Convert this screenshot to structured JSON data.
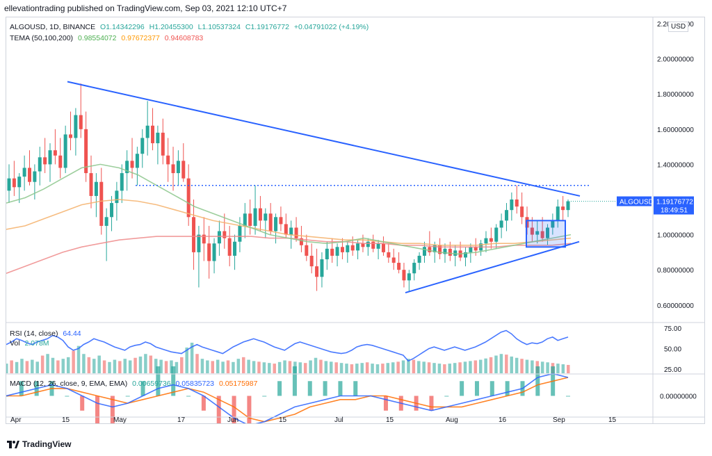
{
  "header": {
    "publisher_line": "ellevationtrading published on TradingView.com, Sep 03, 2021 12:10 UTC+7"
  },
  "legend": {
    "symbol_line": "ALGOUSD, 1D, BINANCE",
    "open": "O1.14342296",
    "high": "H1.20455300",
    "low": "L1.10537324",
    "close": "C1.19176772",
    "change": "+0.04791022 (+4.19%)",
    "tema_label": "TEMA (50,100,200)",
    "tema_v1": "0.98554072",
    "tema_v2": "0.97672377",
    "tema_v3": "0.94608783",
    "rsi_label": "RSI (14, close)",
    "rsi_value": "64.44",
    "vol_label": "Vol",
    "vol_value": "2.078M",
    "macd_label": "MACD (12, 26, close, 9, EMA, EMA)",
    "macd_v1": "0.00659736",
    "macd_v2": "0.05835723",
    "macd_v3": "0.05175987"
  },
  "price_axis": {
    "currency": "USD",
    "ticks": [
      "2.20000000",
      "2.00000000",
      "1.80000000",
      "1.60000000",
      "1.40000000",
      "1.20000000",
      "1.00000000",
      "0.80000000",
      "0.60000000"
    ],
    "symbol_tag": "ALGOUSD",
    "last_price": "1.19176772",
    "countdown": "18:49:51"
  },
  "rsi_axis": {
    "ticks": [
      "75.00",
      "50.00",
      "25.00"
    ]
  },
  "macd_axis": {
    "ticks": [
      "0.00000000"
    ]
  },
  "time_axis": {
    "labels": [
      "Apr",
      "15",
      "May",
      "17",
      "Jun",
      "15",
      "Jul",
      "15",
      "Aug",
      "16",
      "Sep",
      "15"
    ]
  },
  "footer": {
    "brand": "TradingView"
  },
  "colors": {
    "up": "#26a69a",
    "down": "#ef5350",
    "trend": "#2962ff",
    "tema50": "#8bc58b",
    "tema100": "#f5b06a",
    "tema200": "#ef8a8a",
    "rsi": "#2962ff",
    "macd": "#2962ff",
    "signal": "#ff6d00"
  },
  "chart_data": {
    "type": "candlestick",
    "symbol": "ALGOUSD",
    "interval": "1D",
    "exchange": "BINANCE",
    "x_start": "2021-04-01",
    "x_end": "2021-09-03",
    "ylim": [
      0.52,
      2.22
    ],
    "ohlc": [
      [
        1.25,
        1.4,
        1.18,
        1.32
      ],
      [
        1.32,
        1.42,
        1.22,
        1.27
      ],
      [
        1.27,
        1.35,
        1.18,
        1.33
      ],
      [
        1.33,
        1.45,
        1.25,
        1.38
      ],
      [
        1.38,
        1.48,
        1.28,
        1.3
      ],
      [
        1.3,
        1.4,
        1.2,
        1.36
      ],
      [
        1.36,
        1.5,
        1.28,
        1.44
      ],
      [
        1.44,
        1.55,
        1.35,
        1.4
      ],
      [
        1.4,
        1.52,
        1.3,
        1.48
      ],
      [
        1.48,
        1.6,
        1.4,
        1.45
      ],
      [
        1.45,
        1.55,
        1.32,
        1.38
      ],
      [
        1.38,
        1.62,
        1.35,
        1.57
      ],
      [
        1.57,
        1.7,
        1.48,
        1.55
      ],
      [
        1.55,
        1.72,
        1.45,
        1.68
      ],
      [
        1.68,
        1.86,
        1.55,
        1.6
      ],
      [
        1.6,
        1.7,
        1.3,
        1.35
      ],
      [
        1.35,
        1.45,
        1.15,
        1.22
      ],
      [
        1.22,
        1.35,
        1.1,
        1.3
      ],
      [
        1.3,
        1.38,
        1.0,
        1.05
      ],
      [
        1.05,
        1.15,
        0.85,
        1.1
      ],
      [
        1.1,
        1.22,
        1.02,
        1.18
      ],
      [
        1.18,
        1.3,
        1.08,
        1.25
      ],
      [
        1.25,
        1.4,
        1.18,
        1.35
      ],
      [
        1.35,
        1.48,
        1.25,
        1.42
      ],
      [
        1.42,
        1.55,
        1.32,
        1.38
      ],
      [
        1.38,
        1.5,
        1.28,
        1.46
      ],
      [
        1.46,
        1.6,
        1.38,
        1.55
      ],
      [
        1.55,
        1.76,
        1.45,
        1.62
      ],
      [
        1.62,
        1.72,
        1.48,
        1.52
      ],
      [
        1.52,
        1.62,
        1.4,
        1.58
      ],
      [
        1.58,
        1.66,
        1.4,
        1.45
      ],
      [
        1.45,
        1.55,
        1.3,
        1.4
      ],
      [
        1.4,
        1.5,
        1.25,
        1.35
      ],
      [
        1.35,
        1.48,
        1.28,
        1.42
      ],
      [
        1.42,
        1.52,
        1.3,
        1.32
      ],
      [
        1.32,
        1.4,
        1.05,
        1.1
      ],
      [
        1.1,
        1.2,
        0.8,
        0.9
      ],
      [
        0.9,
        1.05,
        0.7,
        1.0
      ],
      [
        1.0,
        1.1,
        0.85,
        0.95
      ],
      [
        0.95,
        1.05,
        0.75,
        0.85
      ],
      [
        0.85,
        0.98,
        0.78,
        0.95
      ],
      [
        0.95,
        1.08,
        0.88,
        1.02
      ],
      [
        1.02,
        1.12,
        0.92,
        0.98
      ],
      [
        0.98,
        1.05,
        0.82,
        0.88
      ],
      [
        0.88,
        1.0,
        0.8,
        0.96
      ],
      [
        0.96,
        1.1,
        0.9,
        1.05
      ],
      [
        1.05,
        1.18,
        0.98,
        1.12
      ],
      [
        1.12,
        1.2,
        1.0,
        1.05
      ],
      [
        1.05,
        1.28,
        1.0,
        1.15
      ],
      [
        1.15,
        1.22,
        1.02,
        1.08
      ],
      [
        1.08,
        1.15,
        0.98,
        1.12
      ],
      [
        1.12,
        1.18,
        1.0,
        1.02
      ],
      [
        1.02,
        1.12,
        0.95,
        1.1
      ],
      [
        1.1,
        1.16,
        1.02,
        1.06
      ],
      [
        1.06,
        1.12,
        0.98,
        1.0
      ],
      [
        1.0,
        1.08,
        0.92,
        1.04
      ],
      [
        1.04,
        1.1,
        0.96,
        0.98
      ],
      [
        0.98,
        1.05,
        0.9,
        0.94
      ],
      [
        0.94,
        1.0,
        0.85,
        0.88
      ],
      [
        0.88,
        0.95,
        0.78,
        0.82
      ],
      [
        0.82,
        0.92,
        0.68,
        0.76
      ],
      [
        0.76,
        0.9,
        0.7,
        0.86
      ],
      [
        0.86,
        0.96,
        0.8,
        0.92
      ],
      [
        0.92,
        0.98,
        0.84,
        0.88
      ],
      [
        0.88,
        0.95,
        0.82,
        0.93
      ],
      [
        0.93,
        0.98,
        0.86,
        0.9
      ],
      [
        0.9,
        0.96,
        0.84,
        0.94
      ],
      [
        0.94,
        0.99,
        0.88,
        0.91
      ],
      [
        0.91,
        0.97,
        0.86,
        0.95
      ],
      [
        0.95,
        1.0,
        0.9,
        0.93
      ],
      [
        0.93,
        0.98,
        0.88,
        0.96
      ],
      [
        0.96,
        1.0,
        0.9,
        0.92
      ],
      [
        0.92,
        0.97,
        0.86,
        0.95
      ],
      [
        0.95,
        0.99,
        0.88,
        0.9
      ],
      [
        0.9,
        0.95,
        0.84,
        0.87
      ],
      [
        0.87,
        0.92,
        0.8,
        0.84
      ],
      [
        0.84,
        0.9,
        0.78,
        0.8
      ],
      [
        0.8,
        0.84,
        0.7,
        0.74
      ],
      [
        0.74,
        0.8,
        0.68,
        0.78
      ],
      [
        0.78,
        0.86,
        0.74,
        0.84
      ],
      [
        0.84,
        0.9,
        0.8,
        0.88
      ],
      [
        0.88,
        0.96,
        0.84,
        0.93
      ],
      [
        0.93,
        1.02,
        0.88,
        0.9
      ],
      [
        0.9,
        0.96,
        0.84,
        0.94
      ],
      [
        0.94,
        0.98,
        0.86,
        0.89
      ],
      [
        0.89,
        0.95,
        0.84,
        0.92
      ],
      [
        0.92,
        0.96,
        0.85,
        0.88
      ],
      [
        0.88,
        0.94,
        0.82,
        0.91
      ],
      [
        0.91,
        0.96,
        0.85,
        0.87
      ],
      [
        0.87,
        0.93,
        0.82,
        0.9
      ],
      [
        0.9,
        0.95,
        0.84,
        0.93
      ],
      [
        0.93,
        0.98,
        0.88,
        0.91
      ],
      [
        0.91,
        0.97,
        0.88,
        0.95
      ],
      [
        0.95,
        1.02,
        0.9,
        0.98
      ],
      [
        0.98,
        1.04,
        0.92,
        0.96
      ],
      [
        0.96,
        1.06,
        0.92,
        1.04
      ],
      [
        1.04,
        1.12,
        0.98,
        1.08
      ],
      [
        1.08,
        1.18,
        1.02,
        1.14
      ],
      [
        1.14,
        1.24,
        1.08,
        1.2
      ],
      [
        1.2,
        1.28,
        1.12,
        1.16
      ],
      [
        1.16,
        1.24,
        1.06,
        1.1
      ],
      [
        1.1,
        1.16,
        1.0,
        1.04
      ],
      [
        1.04,
        1.1,
        0.96,
        1.0
      ],
      [
        1.0,
        1.08,
        0.95,
        1.02
      ],
      [
        1.02,
        1.1,
        0.96,
        0.98
      ],
      [
        0.98,
        1.06,
        0.94,
        1.04
      ],
      [
        1.04,
        1.12,
        1.0,
        1.08
      ],
      [
        1.08,
        1.2,
        1.04,
        1.16
      ],
      [
        1.16,
        1.22,
        1.08,
        1.14
      ],
      [
        1.14,
        1.2,
        1.1,
        1.19
      ]
    ],
    "tema50": [
      1.18,
      1.21,
      1.26,
      1.32,
      1.38,
      1.4,
      1.38,
      1.34,
      1.28,
      1.22,
      1.16,
      1.12,
      1.08,
      1.04,
      1.0,
      0.98,
      0.96,
      0.95,
      0.96,
      0.98,
      0.96,
      0.94,
      0.92,
      0.9,
      0.89,
      0.9,
      0.92,
      0.94,
      0.96,
      0.98,
      1.0
    ],
    "tema100": [
      1.03,
      1.05,
      1.09,
      1.13,
      1.17,
      1.19,
      1.2,
      1.19,
      1.17,
      1.14,
      1.11,
      1.08,
      1.06,
      1.04,
      1.02,
      1.0,
      0.99,
      0.98,
      0.97,
      0.97,
      0.96,
      0.95,
      0.95,
      0.94,
      0.94,
      0.94,
      0.95,
      0.95,
      0.96,
      0.97,
      0.98
    ],
    "tema200": [
      0.78,
      0.82,
      0.86,
      0.9,
      0.93,
      0.95,
      0.97,
      0.98,
      0.99,
      0.99,
      0.99,
      0.99,
      0.99,
      0.99,
      0.98,
      0.98,
      0.97,
      0.96,
      0.96,
      0.95,
      0.95,
      0.94,
      0.94,
      0.93,
      0.93,
      0.93,
      0.93,
      0.94,
      0.94,
      0.94,
      0.95
    ],
    "rsi": [
      55,
      58,
      62,
      60,
      57,
      55,
      58,
      60,
      62,
      66,
      64,
      60,
      52,
      48,
      50,
      55,
      58,
      62,
      60,
      58,
      55,
      52,
      50,
      48,
      52,
      54,
      55,
      58,
      56,
      52,
      50,
      48,
      46,
      45,
      44,
      48,
      52,
      55,
      52,
      50,
      48,
      46,
      44,
      48,
      52,
      55,
      58,
      60,
      62,
      60,
      58,
      55,
      52,
      50,
      48,
      52,
      56,
      58,
      56,
      54,
      52,
      50,
      48,
      46,
      45,
      44,
      45,
      48,
      52,
      54,
      55,
      54,
      52,
      50,
      48,
      46,
      44,
      42,
      35,
      38,
      42,
      46,
      50,
      52,
      50,
      48,
      50,
      52,
      50,
      48,
      50,
      52,
      55,
      58,
      62,
      66,
      70,
      72,
      68,
      62,
      58,
      55,
      57,
      56,
      58,
      62,
      64,
      60,
      62,
      64
    ],
    "volume": [
      30,
      40,
      35,
      45,
      38,
      42,
      36,
      55,
      60,
      48,
      40,
      45,
      50,
      70,
      85,
      60,
      50,
      45,
      55,
      40,
      35,
      42,
      38,
      45,
      40,
      48,
      52,
      60,
      55,
      45,
      42,
      38,
      40,
      35,
      50,
      80,
      95,
      60,
      45,
      40,
      38,
      42,
      36,
      40,
      35,
      45,
      50,
      42,
      38,
      36,
      34,
      32,
      30,
      35,
      40,
      38,
      36,
      34,
      32,
      40,
      48,
      42,
      38,
      36,
      34,
      32,
      30,
      28,
      30,
      32,
      34,
      30,
      28,
      30,
      32,
      34,
      36,
      40,
      45,
      42,
      38,
      36,
      34,
      32,
      30,
      28,
      30,
      32,
      34,
      36,
      38,
      40,
      42,
      46,
      50,
      55,
      60,
      58,
      52,
      48,
      45,
      42,
      40,
      38,
      36,
      34,
      32,
      30,
      28,
      26
    ],
    "macd": [
      0.0,
      0.01,
      0.02,
      0.03,
      0.02,
      0.0,
      -0.02,
      -0.03,
      -0.02,
      0.0,
      0.02,
      0.03,
      0.02,
      0.0,
      -0.03,
      -0.06,
      -0.08,
      -0.07,
      -0.05,
      -0.03,
      -0.02,
      -0.01,
      0.0,
      0.0,
      0.0,
      -0.01,
      -0.02,
      -0.03,
      -0.04,
      -0.03,
      -0.02,
      -0.01,
      0.0,
      0.01,
      0.02,
      0.05,
      0.06,
      0.05
    ],
    "signal": [
      0.0,
      0.0,
      0.01,
      0.02,
      0.02,
      0.01,
      0.0,
      -0.01,
      -0.02,
      -0.01,
      0.0,
      0.01,
      0.02,
      0.01,
      -0.01,
      -0.03,
      -0.06,
      -0.07,
      -0.06,
      -0.05,
      -0.03,
      -0.02,
      -0.01,
      -0.01,
      0.0,
      0.0,
      -0.01,
      -0.02,
      -0.03,
      -0.03,
      -0.03,
      -0.02,
      -0.01,
      0.0,
      0.01,
      0.03,
      0.04,
      0.05
    ]
  }
}
